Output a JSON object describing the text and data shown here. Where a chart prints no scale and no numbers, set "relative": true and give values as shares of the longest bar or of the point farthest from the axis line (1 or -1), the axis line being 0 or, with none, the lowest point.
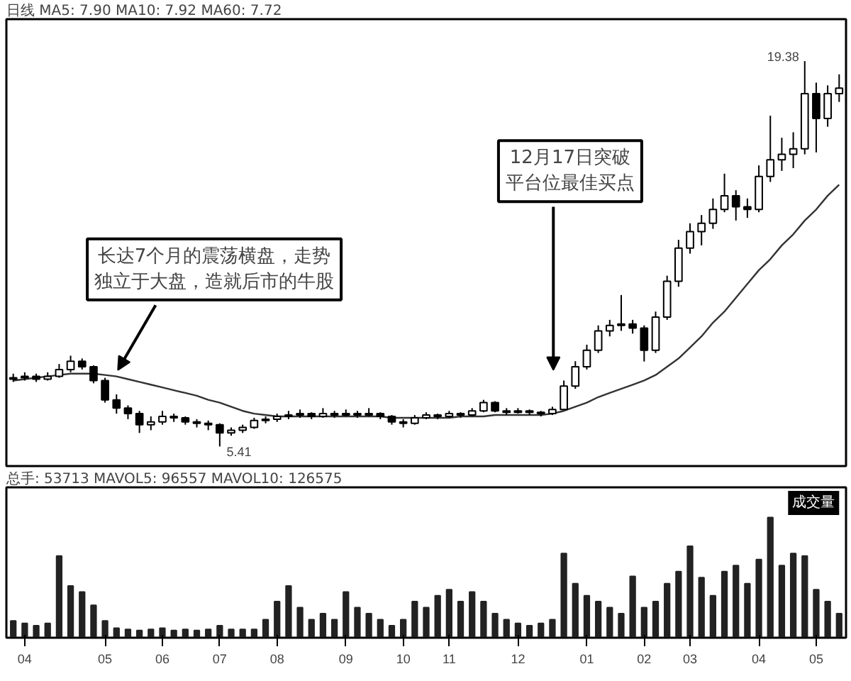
{
  "chart_data": [
    {
      "type": "candlestick",
      "title": "日线 MA5: 7.90 MA10: 7.92 MA60: 7.72",
      "categories": [
        null,
        "04",
        null,
        null,
        null,
        null,
        null,
        null,
        "05",
        null,
        null,
        null,
        null,
        "06",
        null,
        null,
        null,
        null,
        "07",
        null,
        null,
        null,
        null,
        "08",
        null,
        null,
        null,
        null,
        null,
        "09",
        null,
        null,
        null,
        null,
        "10",
        null,
        null,
        null,
        "11",
        null,
        null,
        null,
        null,
        null,
        "12",
        null,
        null,
        null,
        null,
        null,
        "01",
        null,
        null,
        null,
        null,
        "02",
        null,
        null,
        null,
        "03",
        null,
        null,
        null,
        null,
        null,
        "04",
        null,
        null,
        null,
        null,
        "05",
        null,
        null
      ],
      "ohlc": [
        [
          7.85,
          8.05,
          7.75,
          7.9
        ],
        [
          7.9,
          8.1,
          7.8,
          7.95
        ],
        [
          7.95,
          8.05,
          7.75,
          7.85
        ],
        [
          7.85,
          8.1,
          7.8,
          7.95
        ],
        [
          7.95,
          8.4,
          7.9,
          8.2
        ],
        [
          8.2,
          8.7,
          8.1,
          8.5
        ],
        [
          8.5,
          8.6,
          8.2,
          8.3
        ],
        [
          8.3,
          8.35,
          7.7,
          7.8
        ],
        [
          7.8,
          7.9,
          7.0,
          7.1
        ],
        [
          7.1,
          7.3,
          6.6,
          6.8
        ],
        [
          6.8,
          6.9,
          6.4,
          6.6
        ],
        [
          6.6,
          6.7,
          5.9,
          6.2
        ],
        [
          6.2,
          6.5,
          6.0,
          6.3
        ],
        [
          6.3,
          6.7,
          6.2,
          6.5
        ],
        [
          6.5,
          6.6,
          6.3,
          6.45
        ],
        [
          6.45,
          6.5,
          6.2,
          6.3
        ],
        [
          6.3,
          6.4,
          6.1,
          6.25
        ],
        [
          6.25,
          6.35,
          6.0,
          6.2
        ],
        [
          6.2,
          6.25,
          5.41,
          5.9
        ],
        [
          5.9,
          6.1,
          5.8,
          6.0
        ],
        [
          6.0,
          6.2,
          5.9,
          6.1
        ],
        [
          6.1,
          6.45,
          6.05,
          6.35
        ],
        [
          6.35,
          6.5,
          6.25,
          6.4
        ],
        [
          6.4,
          6.6,
          6.3,
          6.5
        ],
        [
          6.5,
          6.7,
          6.4,
          6.55
        ],
        [
          6.55,
          6.75,
          6.45,
          6.6
        ],
        [
          6.6,
          6.65,
          6.4,
          6.5
        ],
        [
          6.5,
          6.8,
          6.45,
          6.6
        ],
        [
          6.6,
          6.7,
          6.45,
          6.55
        ],
        [
          6.55,
          6.75,
          6.5,
          6.6
        ],
        [
          6.6,
          6.7,
          6.45,
          6.55
        ],
        [
          6.55,
          6.8,
          6.5,
          6.6
        ],
        [
          6.6,
          6.65,
          6.4,
          6.5
        ],
        [
          6.5,
          6.55,
          6.2,
          6.3
        ],
        [
          6.3,
          6.4,
          6.1,
          6.25
        ],
        [
          6.25,
          6.55,
          6.2,
          6.45
        ],
        [
          6.45,
          6.65,
          6.4,
          6.55
        ],
        [
          6.55,
          6.6,
          6.4,
          6.5
        ],
        [
          6.5,
          6.7,
          6.45,
          6.6
        ],
        [
          6.6,
          6.65,
          6.45,
          6.55
        ],
        [
          6.55,
          6.8,
          6.5,
          6.7
        ],
        [
          6.7,
          7.1,
          6.65,
          7.0
        ],
        [
          7.0,
          7.05,
          6.65,
          6.7
        ],
        [
          6.7,
          6.8,
          6.55,
          6.65
        ],
        [
          6.65,
          6.8,
          6.6,
          6.7
        ],
        [
          6.7,
          6.75,
          6.55,
          6.65
        ],
        [
          6.65,
          6.7,
          6.5,
          6.6
        ],
        [
          6.6,
          6.85,
          6.55,
          6.75
        ],
        [
          6.75,
          7.8,
          6.75,
          7.6
        ],
        [
          7.6,
          8.5,
          7.5,
          8.3
        ],
        [
          8.3,
          9.1,
          8.2,
          8.9
        ],
        [
          8.9,
          9.8,
          8.8,
          9.6
        ],
        [
          9.6,
          10.0,
          9.4,
          9.8
        ],
        [
          9.8,
          10.9,
          9.6,
          9.85
        ],
        [
          9.85,
          10.0,
          9.5,
          9.7
        ],
        [
          9.7,
          9.8,
          8.49,
          8.9
        ],
        [
          8.9,
          10.3,
          8.8,
          10.1
        ],
        [
          10.1,
          11.6,
          10.0,
          11.4
        ],
        [
          11.4,
          12.9,
          11.2,
          12.6
        ],
        [
          12.6,
          13.5,
          12.4,
          13.2
        ],
        [
          13.2,
          13.8,
          12.7,
          13.5
        ],
        [
          13.5,
          14.4,
          13.3,
          14.0
        ],
        [
          14.0,
          15.3,
          13.9,
          14.5
        ],
        [
          14.5,
          14.7,
          13.6,
          14.1
        ],
        [
          14.1,
          14.4,
          13.7,
          14.0
        ],
        [
          14.0,
          15.6,
          13.9,
          15.2
        ],
        [
          15.2,
          17.4,
          15.0,
          15.8
        ],
        [
          15.8,
          16.6,
          15.4,
          16.0
        ],
        [
          16.0,
          16.8,
          15.5,
          16.2
        ],
        [
          16.2,
          19.38,
          16.0,
          18.2
        ],
        [
          18.2,
          18.6,
          16.07,
          17.3
        ],
        [
          17.3,
          18.5,
          17.0,
          18.2
        ],
        [
          18.2,
          18.9,
          17.9,
          18.4
        ]
      ],
      "series": [
        {
          "type": "line",
          "color": "#333333",
          "values": [
            7.8,
            7.85,
            7.9,
            7.95,
            8.0,
            8.05,
            8.05,
            8.05,
            8.0,
            7.95,
            7.85,
            7.75,
            7.65,
            7.55,
            7.45,
            7.35,
            7.25,
            7.1,
            7.0,
            6.85,
            6.7,
            6.6,
            6.55,
            6.5,
            6.5,
            6.5,
            6.5,
            6.5,
            6.5,
            6.5,
            6.5,
            6.5,
            6.5,
            6.45,
            6.45,
            6.45,
            6.45,
            6.45,
            6.45,
            6.5,
            6.5,
            6.5,
            6.55,
            6.55,
            6.55,
            6.55,
            6.55,
            6.6,
            6.7,
            6.85,
            7.0,
            7.2,
            7.35,
            7.5,
            7.65,
            7.8,
            8.0,
            8.3,
            8.6,
            9.0,
            9.4,
            9.9,
            10.3,
            10.8,
            11.3,
            11.8,
            12.2,
            12.7,
            13.1,
            13.6,
            14.0,
            14.5,
            14.9
          ]
        }
      ],
      "ylim": [
        4.7,
        20.9
      ],
      "tick_labels": false,
      "annotations": [
        "长达7个月的震荡横盘，走势独立于大盘，造就后市的牛股",
        "12月17日突破平台位最佳买点",
        "19.38",
        "5.41"
      ]
    },
    {
      "type": "bar",
      "title": "总手: 53713 MAVOL5: 96557 MAVOL10: 126575",
      "categories": [
        null,
        "04",
        null,
        null,
        null,
        null,
        null,
        null,
        "05",
        null,
        null,
        null,
        null,
        "06",
        null,
        null,
        null,
        null,
        "07",
        null,
        null,
        null,
        null,
        "08",
        null,
        null,
        null,
        null,
        null,
        "09",
        null,
        null,
        null,
        null,
        "10",
        null,
        null,
        null,
        "11",
        null,
        null,
        null,
        null,
        null,
        "12",
        null,
        null,
        null,
        null,
        null,
        "01",
        null,
        null,
        null,
        null,
        "02",
        null,
        null,
        null,
        "03",
        null,
        null,
        null,
        null,
        null,
        "04",
        null,
        null,
        null,
        null,
        "05",
        null,
        null
      ],
      "values": [
        0.14,
        0.12,
        0.1,
        0.12,
        0.68,
        0.43,
        0.38,
        0.27,
        0.14,
        0.08,
        0.07,
        0.06,
        0.07,
        0.08,
        0.06,
        0.07,
        0.06,
        0.07,
        0.1,
        0.07,
        0.07,
        0.07,
        0.15,
        0.3,
        0.43,
        0.25,
        0.15,
        0.2,
        0.15,
        0.38,
        0.25,
        0.2,
        0.15,
        0.1,
        0.15,
        0.3,
        0.25,
        0.35,
        0.4,
        0.3,
        0.38,
        0.3,
        0.2,
        0.15,
        0.12,
        0.1,
        0.12,
        0.15,
        0.7,
        0.45,
        0.35,
        0.3,
        0.25,
        0.2,
        0.51,
        0.25,
        0.3,
        0.45,
        0.55,
        0.76,
        0.5,
        0.35,
        0.55,
        0.6,
        0.45,
        0.65,
        1.0,
        0.6,
        0.7,
        0.68,
        0.4,
        0.3,
        0.2
      ],
      "color": "#222222",
      "relative": true,
      "tick_labels": "x",
      "annotations": [
        "成交量"
      ]
    }
  ]
}
